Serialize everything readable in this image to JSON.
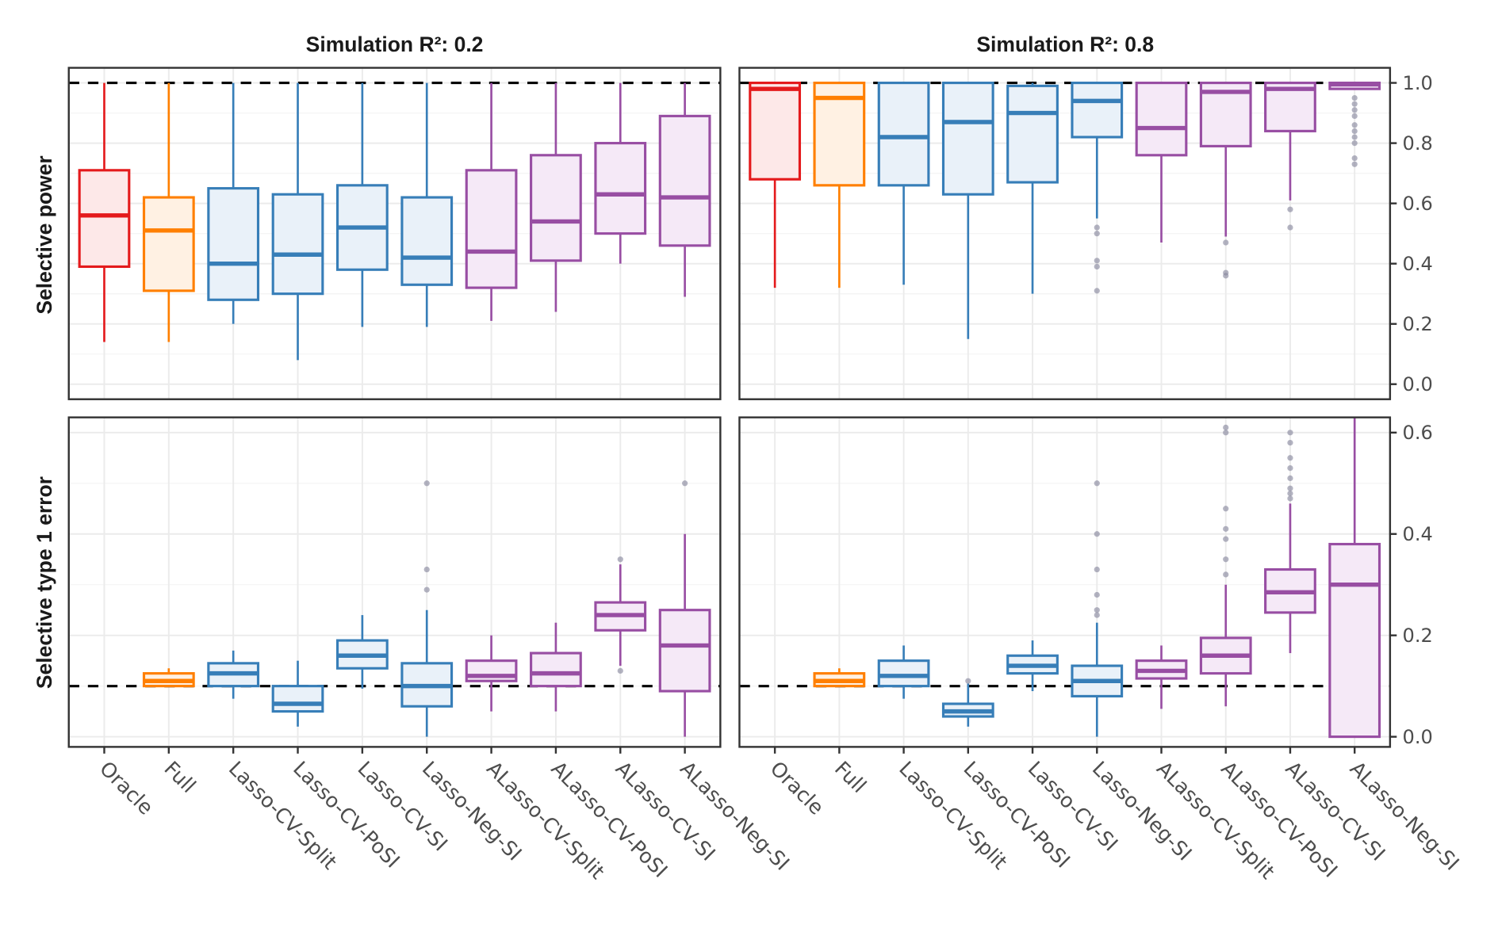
{
  "chart_data": {
    "type": "boxplot",
    "facets": {
      "columns": [
        "Simulation R²: 0.2",
        "Simulation R²: 0.8"
      ],
      "rows": [
        "Selective power",
        "Selective type 1 error"
      ]
    },
    "categories": [
      "Oracle",
      "Full",
      "Lasso-CV-Split",
      "Lasso-CV-PoSI",
      "Lasso-CV-SI",
      "Lasso-Neg-SI",
      "ALasso-CV-Split",
      "ALasso-CV-PoSI",
      "ALasso-CV-SI",
      "ALasso-Neg-SI"
    ],
    "category_colors": [
      "#e41a1c",
      "#ff7f00",
      "#377eb8",
      "#377eb8",
      "#377eb8",
      "#377eb8",
      "#984ea3",
      "#984ea3",
      "#984ea3",
      "#984ea3"
    ],
    "category_fills": [
      "#fde8e8",
      "#fff1e3",
      "#e9f1f9",
      "#e9f1f9",
      "#e9f1f9",
      "#e9f1f9",
      "#f5e9f7",
      "#f5e9f7",
      "#f5e9f7",
      "#f5e9f7"
    ],
    "rows_axis": [
      {
        "label": "Selective power",
        "ylim": [
          -0.05,
          1.05
        ],
        "ticks": [
          0.0,
          0.2,
          0.4,
          0.6,
          0.8,
          1.0
        ],
        "tick_labels": [
          "0.0",
          "0.2",
          "0.4",
          "0.6",
          "0.8",
          "1.0"
        ],
        "reference_line": 1.0
      },
      {
        "label": "Selective type 1 error",
        "ylim": [
          -0.02,
          0.63
        ],
        "ticks": [
          0.0,
          0.2,
          0.4,
          0.6
        ],
        "tick_labels": [
          "0.0",
          "0.2",
          "0.4",
          "0.6"
        ],
        "reference_line": 0.1
      }
    ],
    "panels": [
      {
        "row": 0,
        "col": 0,
        "boxes": [
          {
            "min": 0.14,
            "q1": 0.39,
            "median": 0.56,
            "q3": 0.71,
            "max": 1.0,
            "outliers": []
          },
          {
            "min": 0.14,
            "q1": 0.31,
            "median": 0.51,
            "q3": 0.62,
            "max": 1.0,
            "outliers": []
          },
          {
            "min": 0.2,
            "q1": 0.28,
            "median": 0.4,
            "q3": 0.65,
            "max": 1.0,
            "outliers": []
          },
          {
            "min": 0.08,
            "q1": 0.3,
            "median": 0.43,
            "q3": 0.63,
            "max": 1.0,
            "outliers": []
          },
          {
            "min": 0.19,
            "q1": 0.38,
            "median": 0.52,
            "q3": 0.66,
            "max": 1.0,
            "outliers": []
          },
          {
            "min": 0.19,
            "q1": 0.33,
            "median": 0.42,
            "q3": 0.62,
            "max": 1.0,
            "outliers": []
          },
          {
            "min": 0.21,
            "q1": 0.32,
            "median": 0.44,
            "q3": 0.71,
            "max": 1.0,
            "outliers": []
          },
          {
            "min": 0.24,
            "q1": 0.41,
            "median": 0.54,
            "q3": 0.76,
            "max": 1.0,
            "outliers": []
          },
          {
            "min": 0.4,
            "q1": 0.5,
            "median": 0.63,
            "q3": 0.8,
            "max": 1.0,
            "outliers": []
          },
          {
            "min": 0.29,
            "q1": 0.46,
            "median": 0.62,
            "q3": 0.89,
            "max": 1.0,
            "outliers": []
          }
        ]
      },
      {
        "row": 0,
        "col": 1,
        "boxes": [
          {
            "min": 0.32,
            "q1": 0.68,
            "median": 0.98,
            "q3": 1.0,
            "max": 1.0,
            "outliers": []
          },
          {
            "min": 0.32,
            "q1": 0.66,
            "median": 0.95,
            "q3": 1.0,
            "max": 1.0,
            "outliers": []
          },
          {
            "min": 0.33,
            "q1": 0.66,
            "median": 0.82,
            "q3": 1.0,
            "max": 1.0,
            "outliers": []
          },
          {
            "min": 0.15,
            "q1": 0.63,
            "median": 0.87,
            "q3": 1.0,
            "max": 1.0,
            "outliers": []
          },
          {
            "min": 0.3,
            "q1": 0.67,
            "median": 0.9,
            "q3": 0.99,
            "max": 1.0,
            "outliers": []
          },
          {
            "min": 0.55,
            "q1": 0.82,
            "median": 0.94,
            "q3": 1.0,
            "max": 1.0,
            "outliers": [
              0.52,
              0.5,
              0.41,
              0.39,
              0.31
            ]
          },
          {
            "min": 0.47,
            "q1": 0.76,
            "median": 0.85,
            "q3": 1.0,
            "max": 1.0,
            "outliers": []
          },
          {
            "min": 0.49,
            "q1": 0.79,
            "median": 0.97,
            "q3": 1.0,
            "max": 1.0,
            "outliers": [
              0.47,
              0.37,
              0.36
            ]
          },
          {
            "min": 0.61,
            "q1": 0.84,
            "median": 0.98,
            "q3": 1.0,
            "max": 1.0,
            "outliers": [
              0.58,
              0.52
            ]
          },
          {
            "min": 0.98,
            "q1": 0.98,
            "median": 0.995,
            "q3": 1.0,
            "max": 1.0,
            "outliers": [
              0.95,
              0.93,
              0.91,
              0.89,
              0.86,
              0.84,
              0.82,
              0.8,
              0.75,
              0.73
            ]
          }
        ]
      },
      {
        "row": 1,
        "col": 0,
        "boxes": [
          {
            "min": null,
            "q1": null,
            "median": null,
            "q3": null,
            "max": null,
            "outliers": []
          },
          {
            "min": 0.1,
            "q1": 0.1,
            "median": 0.11,
            "q3": 0.125,
            "max": 0.135,
            "outliers": []
          },
          {
            "min": 0.075,
            "q1": 0.1,
            "median": 0.125,
            "q3": 0.145,
            "max": 0.17,
            "outliers": []
          },
          {
            "min": 0.02,
            "q1": 0.05,
            "median": 0.065,
            "q3": 0.1,
            "max": 0.15,
            "outliers": []
          },
          {
            "min": 0.095,
            "q1": 0.135,
            "median": 0.16,
            "q3": 0.19,
            "max": 0.24,
            "outliers": []
          },
          {
            "min": 0.0,
            "q1": 0.06,
            "median": 0.1,
            "q3": 0.145,
            "max": 0.25,
            "outliers": [
              0.5,
              0.33,
              0.29
            ]
          },
          {
            "min": 0.05,
            "q1": 0.11,
            "median": 0.12,
            "q3": 0.15,
            "max": 0.2,
            "outliers": []
          },
          {
            "min": 0.05,
            "q1": 0.1,
            "median": 0.125,
            "q3": 0.165,
            "max": 0.225,
            "outliers": []
          },
          {
            "min": 0.14,
            "q1": 0.21,
            "median": 0.24,
            "q3": 0.265,
            "max": 0.34,
            "outliers": [
              0.35,
              0.13
            ]
          },
          {
            "min": 0.0,
            "q1": 0.09,
            "median": 0.18,
            "q3": 0.25,
            "max": 0.4,
            "outliers": [
              0.5
            ]
          }
        ]
      },
      {
        "row": 1,
        "col": 1,
        "boxes": [
          {
            "min": null,
            "q1": null,
            "median": null,
            "q3": null,
            "max": null,
            "outliers": []
          },
          {
            "min": 0.1,
            "q1": 0.1,
            "median": 0.11,
            "q3": 0.125,
            "max": 0.135,
            "outliers": []
          },
          {
            "min": 0.075,
            "q1": 0.1,
            "median": 0.12,
            "q3": 0.15,
            "max": 0.18,
            "outliers": []
          },
          {
            "min": 0.02,
            "q1": 0.04,
            "median": 0.05,
            "q3": 0.065,
            "max": 0.105,
            "outliers": [
              0.11
            ]
          },
          {
            "min": 0.09,
            "q1": 0.125,
            "median": 0.14,
            "q3": 0.16,
            "max": 0.19,
            "outliers": []
          },
          {
            "min": 0.0,
            "q1": 0.08,
            "median": 0.11,
            "q3": 0.14,
            "max": 0.225,
            "outliers": [
              0.5,
              0.4,
              0.33,
              0.28,
              0.25,
              0.24
            ]
          },
          {
            "min": 0.055,
            "q1": 0.115,
            "median": 0.13,
            "q3": 0.15,
            "max": 0.18,
            "outliers": []
          },
          {
            "min": 0.06,
            "q1": 0.125,
            "median": 0.16,
            "q3": 0.195,
            "max": 0.3,
            "outliers": [
              0.61,
              0.6,
              0.45,
              0.41,
              0.39,
              0.35,
              0.32
            ]
          },
          {
            "min": 0.165,
            "q1": 0.245,
            "median": 0.285,
            "q3": 0.33,
            "max": 0.46,
            "outliers": [
              0.6,
              0.58,
              0.55,
              0.53,
              0.51,
              0.49,
              0.48,
              0.47
            ]
          },
          {
            "min": 0.0,
            "q1": 0.0,
            "median": 0.3,
            "q3": 0.38,
            "max": 0.63,
            "outliers": []
          }
        ]
      }
    ],
    "title": "",
    "xlabel": "",
    "y_axis_position": "right",
    "grid": true,
    "legend": "none"
  }
}
